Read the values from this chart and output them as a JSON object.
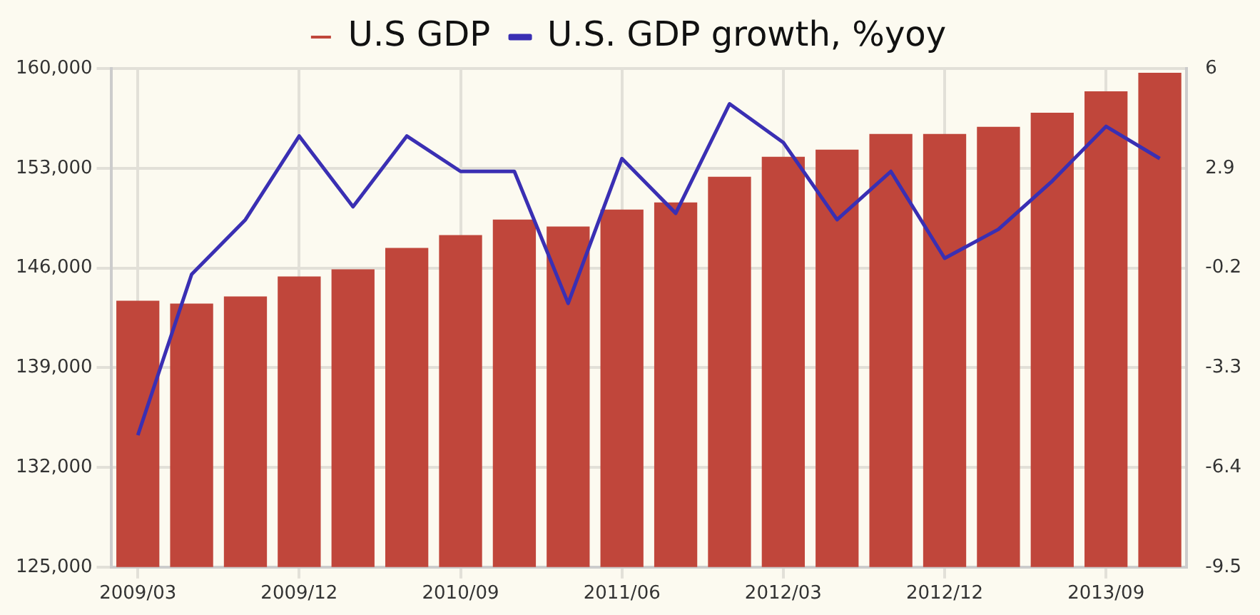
{
  "chart_data": {
    "type": "bar",
    "categories": [
      "2009/03",
      null,
      null,
      "2009/12",
      null,
      null,
      "2010/09",
      null,
      null,
      "2011/06",
      null,
      null,
      "2012/03",
      null,
      null,
      "2012/12",
      null,
      null,
      "2013/09",
      null
    ],
    "series": [
      {
        "name": "U.S GDP",
        "color": "#c0463b",
        "values": [
          143700,
          143500,
          144000,
          145400,
          145900,
          147400,
          148300,
          149400,
          148900,
          150100,
          150600,
          152400,
          153800,
          154300,
          155400,
          155400,
          155900,
          156900,
          158400,
          159700
        ]
      },
      {
        "name": "U.S. GDP growth, %yoy",
        "type": "line",
        "axis": "y2",
        "color": "#3a2fb3",
        "values": [
          -5.4,
          -0.4,
          1.3,
          3.9,
          1.7,
          3.9,
          2.8,
          2.8,
          -1.3,
          3.2,
          1.5,
          4.9,
          3.7,
          1.3,
          2.8,
          0.1,
          1.0,
          2.5,
          4.2,
          3.2
        ]
      }
    ],
    "ylim": [
      125000,
      160000
    ],
    "yticks": [
      {
        "value": 125000,
        "label": "125,000"
      },
      {
        "value": 132000,
        "label": "132,000"
      },
      {
        "value": 139000,
        "label": "139,000"
      },
      {
        "value": 146000,
        "label": "146,000"
      },
      {
        "value": 153000,
        "label": "153,000"
      },
      {
        "value": 160000,
        "label": "160,000"
      }
    ],
    "y2lim": [
      -9.5,
      6
    ],
    "y2ticks": [
      -9.5,
      -6.4,
      -3.3,
      -0.2,
      2.9,
      6
    ],
    "grid": true,
    "legend": "top",
    "marker": "none",
    "line_style": "solid"
  }
}
